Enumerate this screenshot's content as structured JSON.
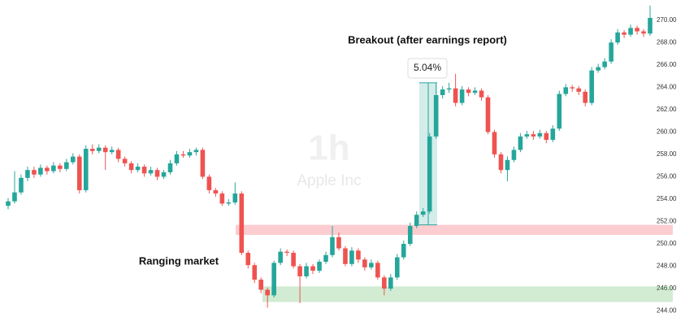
{
  "chart_data": {
    "type": "candlestick",
    "annotations": {
      "breakout": "Breakout (after earnings report)",
      "ranging": "Ranging market",
      "watermark_interval": "1h",
      "watermark_symbol": "Apple Inc"
    },
    "open": [
      253.4,
      253.8,
      254.6,
      255.9,
      256.6,
      256.2,
      256.8,
      256.5,
      257.0,
      256.7,
      257.3,
      257.8,
      254.8,
      258.5,
      258.3,
      258.6,
      258.2,
      258.4,
      257.6,
      257.2,
      256.6,
      256.9,
      256.3,
      256.6,
      256.0,
      256.4,
      257.2,
      258.0,
      257.9,
      258.2,
      258.4,
      256.0,
      254.8,
      254.5,
      253.6,
      253.7,
      254.5,
      249.2,
      248.1,
      246.8,
      245.9,
      245.4,
      248.3,
      249.3,
      249.2,
      248.0,
      247.1,
      248.0,
      247.6,
      248.4,
      249.0,
      250.6,
      249.6,
      248.2,
      249.4,
      248.6,
      247.9,
      248.3,
      247.0,
      246.0,
      247.0,
      248.8,
      250.0,
      251.6,
      252.6,
      252.9,
      259.6,
      263.3,
      263.8,
      263.9,
      262.6,
      263.8,
      263.5,
      263.7,
      263.1,
      260.0,
      258.0,
      256.6,
      257.5,
      258.4,
      259.6,
      259.8,
      259.6,
      259.9,
      259.3,
      260.3,
      263.4,
      264.0,
      263.9,
      263.6,
      262.6,
      265.5,
      265.8,
      266.3,
      268.0,
      268.9,
      268.7,
      269.3,
      269.0,
      268.8
    ],
    "high": [
      254.1,
      256.5,
      256.2,
      256.9,
      256.9,
      257.1,
      257.0,
      257.3,
      257.2,
      257.6,
      258.1,
      258.0,
      258.8,
      258.9,
      258.9,
      258.8,
      258.7,
      258.6,
      257.8,
      257.4,
      257.2,
      257.1,
      256.9,
      256.8,
      256.6,
      257.5,
      258.3,
      258.3,
      258.5,
      258.6,
      258.6,
      256.2,
      255.0,
      254.7,
      254.0,
      255.5,
      254.7,
      249.4,
      248.3,
      247.0,
      246.1,
      248.5,
      249.6,
      249.5,
      249.4,
      248.2,
      248.3,
      248.2,
      248.6,
      249.3,
      251.6,
      251.0,
      249.8,
      249.7,
      249.6,
      248.8,
      248.6,
      248.5,
      247.2,
      247.3,
      249.1,
      250.3,
      251.9,
      252.9,
      253.2,
      259.9,
      264.4,
      264.1,
      264.4,
      265.2,
      264.1,
      264.0,
      264.0,
      263.9,
      263.3,
      260.2,
      258.2,
      257.8,
      258.7,
      259.9,
      260.1,
      260.1,
      260.2,
      260.1,
      260.6,
      263.7,
      264.3,
      264.2,
      264.1,
      263.8,
      265.8,
      266.1,
      266.6,
      268.3,
      269.2,
      269.1,
      269.6,
      269.5,
      269.2,
      271.3
    ],
    "low": [
      253.1,
      253.6,
      254.4,
      255.6,
      255.9,
      256.0,
      256.2,
      256.3,
      256.4,
      256.5,
      257.1,
      254.5,
      254.6,
      258.0,
      258.1,
      256.6,
      258.0,
      257.3,
      256.9,
      256.3,
      256.4,
      256.0,
      256.1,
      255.7,
      255.8,
      256.2,
      257.0,
      257.7,
      257.7,
      257.9,
      255.8,
      254.5,
      254.2,
      253.4,
      253.4,
      253.5,
      249.0,
      247.8,
      246.5,
      245.6,
      244.3,
      245.2,
      248.1,
      248.9,
      247.8,
      244.7,
      246.9,
      247.3,
      247.4,
      248.2,
      248.8,
      249.4,
      248.0,
      248.0,
      248.3,
      247.6,
      247.7,
      246.8,
      245.4,
      245.8,
      246.8,
      248.6,
      249.8,
      251.4,
      252.4,
      252.7,
      259.4,
      263.0,
      263.5,
      262.3,
      262.4,
      263.2,
      263.3,
      262.8,
      259.8,
      257.7,
      256.3,
      255.6,
      257.3,
      258.2,
      259.4,
      259.3,
      259.4,
      259.0,
      259.1,
      260.1,
      263.2,
      263.6,
      263.3,
      262.3,
      262.4,
      265.3,
      265.6,
      266.1,
      267.8,
      268.4,
      268.5,
      268.7,
      268.5,
      268.6
    ],
    "close": [
      253.8,
      254.6,
      255.9,
      256.6,
      256.2,
      256.8,
      256.5,
      257.0,
      256.7,
      257.3,
      257.8,
      254.8,
      258.5,
      258.3,
      258.6,
      258.2,
      258.4,
      257.6,
      257.2,
      256.6,
      256.9,
      256.3,
      256.6,
      256.0,
      256.4,
      257.2,
      258.0,
      257.9,
      258.2,
      258.4,
      256.0,
      254.8,
      254.5,
      253.6,
      253.7,
      254.5,
      249.2,
      248.1,
      246.8,
      245.9,
      245.4,
      248.3,
      249.3,
      249.2,
      248.0,
      247.1,
      248.0,
      247.6,
      248.4,
      249.0,
      250.6,
      249.6,
      248.2,
      249.4,
      248.6,
      247.9,
      248.3,
      247.0,
      246.0,
      247.0,
      248.8,
      250.0,
      251.6,
      252.6,
      252.9,
      259.6,
      263.3,
      263.8,
      263.9,
      262.6,
      263.8,
      263.5,
      263.7,
      263.1,
      260.0,
      258.0,
      256.6,
      257.5,
      258.4,
      259.6,
      259.8,
      259.6,
      259.9,
      259.3,
      260.3,
      263.4,
      264.0,
      263.9,
      263.6,
      262.6,
      265.5,
      265.8,
      266.3,
      268.0,
      268.9,
      268.7,
      269.3,
      269.0,
      268.8,
      270.2
    ],
    "up_color": "#26a69a",
    "down_color": "#ef5350",
    "zones": [
      {
        "from": 250.8,
        "to": 251.7,
        "color": "rgba(242,54,69,0.25)"
      },
      {
        "from": 244.8,
        "to": 246.2,
        "color": "rgba(76,175,80,0.25)"
      }
    ],
    "measure": {
      "from": 251.7,
      "to": 264.4,
      "label": "5.04%",
      "color": "rgba(38,166,154,0.2)"
    },
    "ylim": [
      242.3,
      271.8
    ],
    "yticks": [
      {
        "value": 244,
        "label": "244.00"
      },
      {
        "value": 246,
        "label": "246.00"
      },
      {
        "value": 248,
        "label": "248.00"
      },
      {
        "value": 250,
        "label": "250.00"
      },
      {
        "value": 252,
        "label": "252.00"
      },
      {
        "value": 254,
        "label": "254.00"
      },
      {
        "value": 256,
        "label": "256.00"
      },
      {
        "value": 258,
        "label": "258.00"
      },
      {
        "value": 260,
        "label": "260.00"
      },
      {
        "value": 262,
        "label": "262.00"
      },
      {
        "value": 264,
        "label": "264.00"
      },
      {
        "value": 266,
        "label": "266.00"
      },
      {
        "value": 268,
        "label": "268.00"
      },
      {
        "value": 270,
        "label": "270.00"
      }
    ],
    "grid": false
  }
}
